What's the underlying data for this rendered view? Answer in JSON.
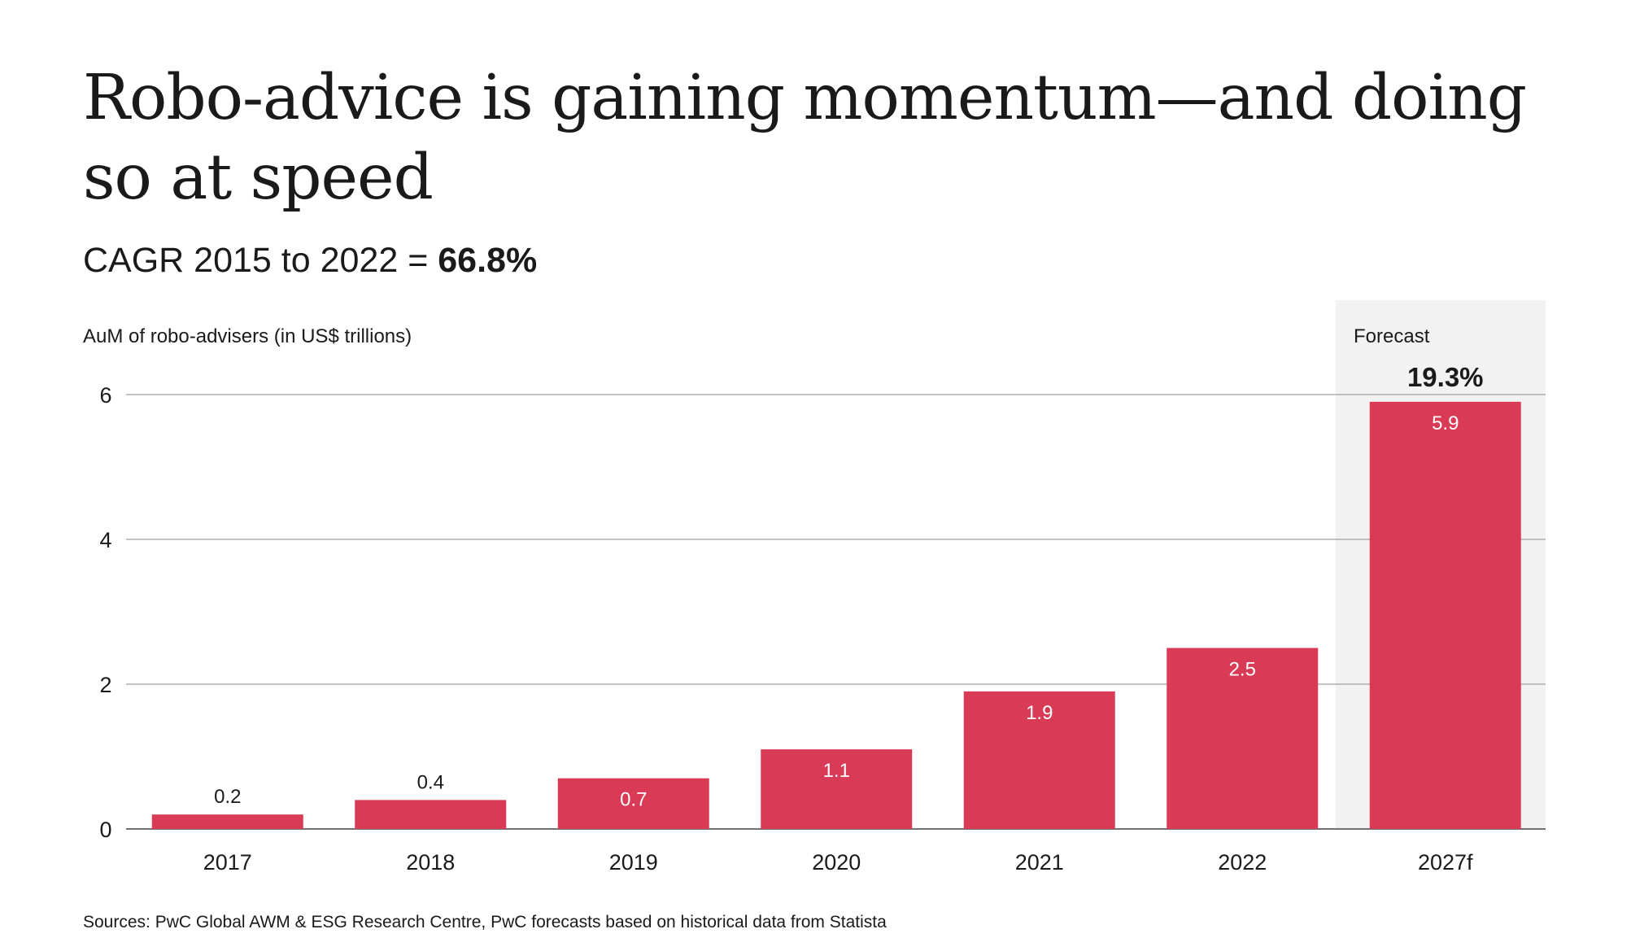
{
  "title": "Robo-advice is gaining momentum—and doing so at speed",
  "subtitle": {
    "prefix": "CAGR 2015 to 2022 = ",
    "value": "66.8%"
  },
  "source": "Sources: PwC Global AWM & ESG Research Centre, PwC forecasts based on historical data from Statista",
  "colors": {
    "bar": "#d93a55",
    "forecast_band": "#f2f2f2",
    "grid": "#8a8a8a",
    "text": "#1a1a1a",
    "label_inside": "#ffffff"
  },
  "chart_data": {
    "type": "bar",
    "ylabel": "AuM of robo-advisers (in US$ trillions)",
    "categories": [
      "2017",
      "2018",
      "2019",
      "2020",
      "2021",
      "2022",
      "2027f"
    ],
    "values": [
      0.2,
      0.4,
      0.7,
      1.1,
      1.9,
      2.5,
      5.9
    ],
    "data_labels": [
      "0.2",
      "0.4",
      "0.7",
      "1.1",
      "1.9",
      "2.5",
      "5.9"
    ],
    "ylim": [
      0,
      6
    ],
    "yticks": [
      0,
      2,
      4,
      6
    ],
    "ytick_labels": [
      "0",
      "2",
      "4",
      "6"
    ],
    "grid": true,
    "forecast": {
      "category": "2027f",
      "label": "Forecast",
      "cagr": "19.3%"
    }
  }
}
